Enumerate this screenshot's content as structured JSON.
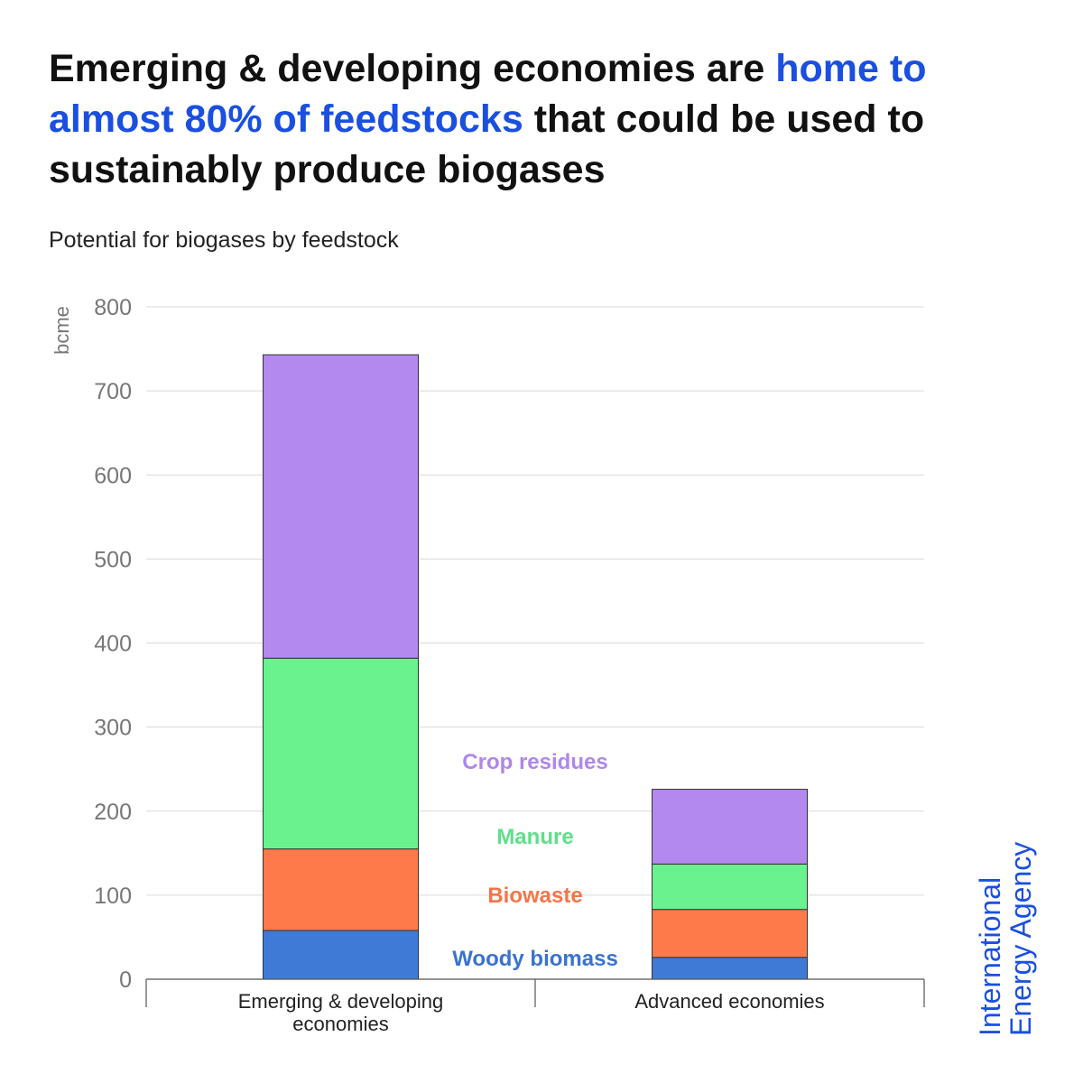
{
  "headline": {
    "part1": "Emerging & developing economies are ",
    "highlight": "home to almost 80% of feedstocks",
    "part2": " that could be used to sustainably produce biogases"
  },
  "subtitle": "Potential for biogases by feedstock",
  "organization": {
    "line1": "International",
    "line2": "Energy Agency"
  },
  "colors": {
    "highlight": "#1a4fe0",
    "crop_residues": "#b388ef",
    "manure": "#6af28f",
    "biowaste": "#ff7a4a",
    "woody_biomass": "#3f7bd6"
  },
  "chart_data": {
    "type": "bar",
    "stacked": true,
    "title": "Potential for biogases by feedstock",
    "xlabel": "",
    "ylabel": "bcme",
    "ylim": [
      0,
      800
    ],
    "yticks": [
      0,
      100,
      200,
      300,
      400,
      500,
      600,
      700,
      800
    ],
    "grid": true,
    "categories": [
      "Emerging & developing economies",
      "Advanced economies"
    ],
    "category_lines": [
      [
        "Emerging & developing",
        "economies"
      ],
      [
        "Advanced economies"
      ]
    ],
    "series": [
      {
        "name": "Woody biomass",
        "color": "#3f7bd6",
        "label_color": "#3a72d0",
        "values": [
          58,
          26
        ]
      },
      {
        "name": "Biowaste",
        "color": "#ff7a4a",
        "label_color": "#f2764a",
        "values": [
          97,
          57
        ]
      },
      {
        "name": "Manure",
        "color": "#6af28f",
        "label_color": "#5ee089",
        "values": [
          227,
          54
        ]
      },
      {
        "name": "Crop residues",
        "color": "#b388ef",
        "label_color": "#b086ec",
        "values": [
          361,
          89
        ]
      }
    ]
  }
}
